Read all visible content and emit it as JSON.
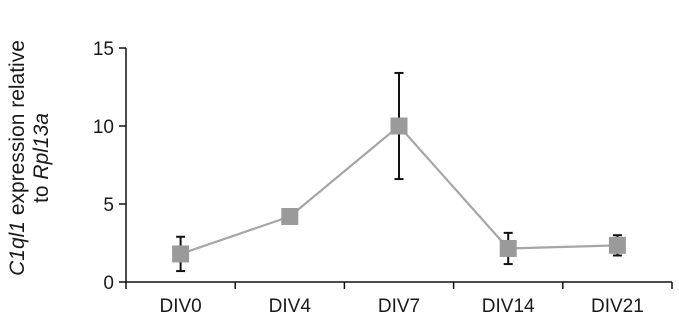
{
  "chart_data": {
    "type": "line",
    "categories": [
      "DIV0",
      "DIV4",
      "DIV7",
      "DIV14",
      "DIV21"
    ],
    "series": [
      {
        "values": [
          1.8,
          4.2,
          10.0,
          2.15,
          2.35
        ],
        "error": [
          1.1,
          0.0,
          3.4,
          1.0,
          0.65
        ]
      }
    ],
    "ylabel": {
      "line1_italic": "C1ql1",
      "line1_rest": " expression relative",
      "line2_rest": "to ",
      "line2_italic": "Rpl13a"
    },
    "ylim": [
      0,
      15
    ],
    "yticks": [
      "0",
      "5",
      "10",
      "15"
    ],
    "grid": false,
    "colors": {
      "series": "#a6a6a6",
      "marker": "#9a9a9a",
      "error": "#111111",
      "axis": "#111111"
    }
  }
}
